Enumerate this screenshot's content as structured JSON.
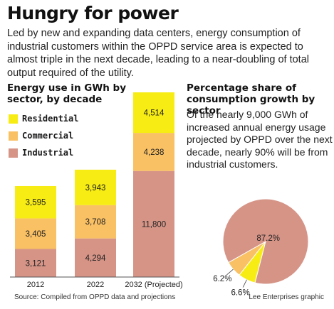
{
  "headline": "Hungry for power",
  "intro": "Led by new and expanding data centers, energy consumption of industrial customers within the OPPD service area is expected to almost triple in the next decade, leading to a near-doubling of total output required of the utility.",
  "bar_section": {
    "title_line1": "Energy use in GWh by",
    "title_line2": "sector, by decade"
  },
  "pie_section": {
    "title_line1": "Percentage share of",
    "title_line2": "consumption growth by sector",
    "description": "Of the nearly 9,000 GWh of increased annual energy usage projected by OPPD over the next decade, nearly 90% will be from industrial customers."
  },
  "legend": [
    {
      "label": "Residential",
      "color": "#f7ec13"
    },
    {
      "label": "Commercial",
      "color": "#f9c064"
    },
    {
      "label": "Industrial",
      "color": "#d69487"
    }
  ],
  "source": "Source: Compiled from OPPD data and projections",
  "credit": "Lee Enterprises graphic",
  "chart_data": [
    {
      "type": "bar",
      "stacked": true,
      "categories": [
        "2012",
        "2022",
        "2032 (Projected)"
      ],
      "series": [
        {
          "name": "Industrial",
          "color": "#d69487",
          "values": [
            3121,
            4294,
            11800
          ],
          "labels": [
            "3,121",
            "4,294",
            "11,800"
          ]
        },
        {
          "name": "Commercial",
          "color": "#f9c064",
          "values": [
            3405,
            3708,
            4238
          ],
          "labels": [
            "3,405",
            "3,708",
            "4,238"
          ]
        },
        {
          "name": "Residential",
          "color": "#f7ec13",
          "values": [
            3595,
            3943,
            4514
          ],
          "labels": [
            "3,595",
            "3,943",
            "4,514"
          ]
        }
      ]
    },
    {
      "type": "pie",
      "slices": [
        {
          "name": "Industrial",
          "value": 87.2,
          "label": "87.2%",
          "color": "#d69487"
        },
        {
          "name": "Residential",
          "value": 6.6,
          "label": "6.6%",
          "color": "#f7ec13"
        },
        {
          "name": "Commercial",
          "value": 6.2,
          "label": "6.2%",
          "color": "#f9c064"
        }
      ]
    }
  ]
}
